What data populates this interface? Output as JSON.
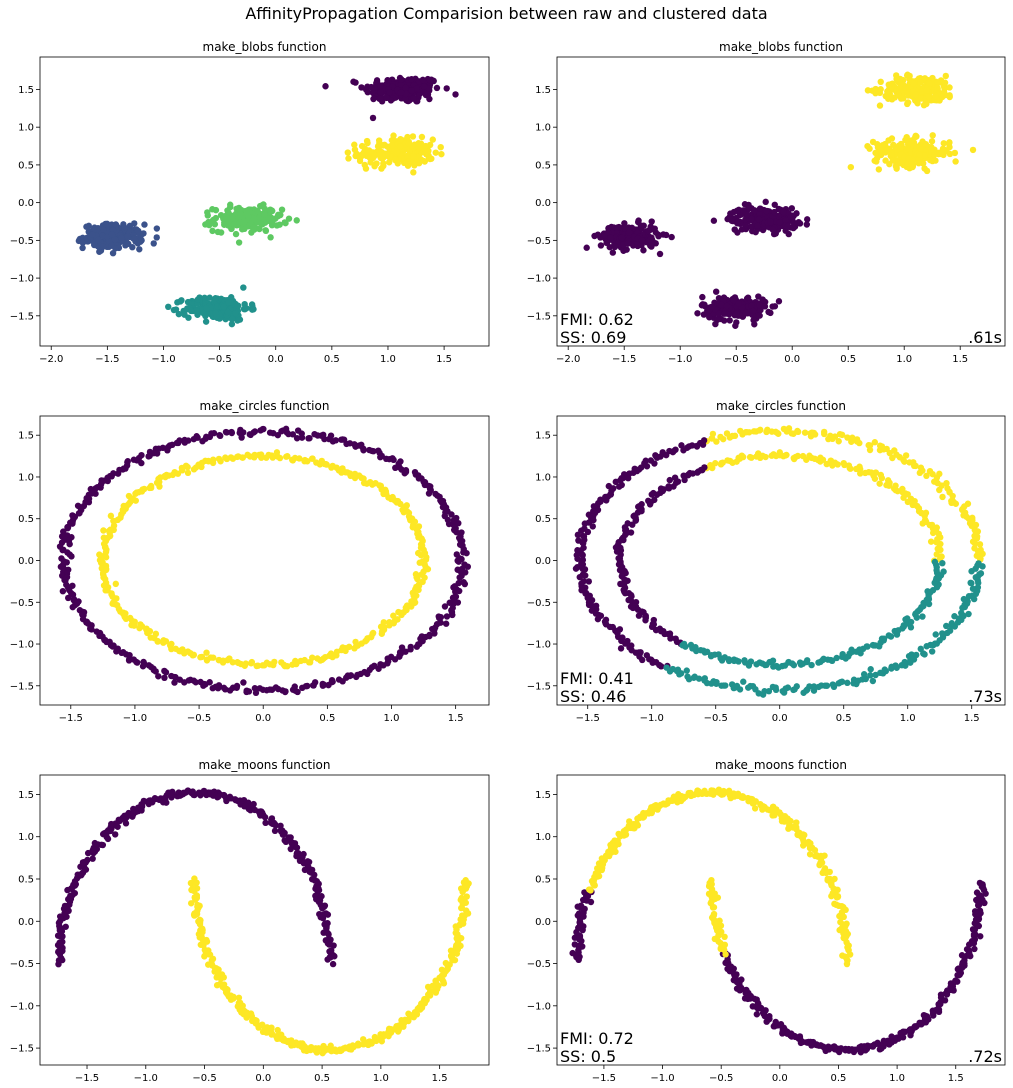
{
  "figure": {
    "suptitle": "AffinityPropagation Comparision between raw and clustered data"
  },
  "colors": {
    "purple": "#440154",
    "blue": "#3b528b",
    "teal": "#21918c",
    "green": "#5ec962",
    "yellow": "#fde725"
  },
  "chart_data": [
    {
      "type": "scatter",
      "title": "make_blobs function",
      "xlim": [
        -2.1,
        1.9
      ],
      "ylim": [
        -1.9,
        1.93
      ],
      "xticks": [
        -2.0,
        -1.5,
        -1.0,
        -0.5,
        0.0,
        0.5,
        1.0,
        1.5
      ],
      "xtick_labels": [
        "−2.0",
        "−1.5",
        "−1.0",
        "−0.5",
        "0.0",
        "0.5",
        "1.0",
        "1.5"
      ],
      "yticks": [
        -1.5,
        -1.0,
        -0.5,
        0.0,
        0.5,
        1.0,
        1.5
      ],
      "ytick_labels": [
        "−1.5",
        "−1.0",
        "−0.5",
        "0.0",
        "0.5",
        "1.0",
        "1.5"
      ],
      "series": [
        {
          "shape": "blob",
          "color": "purple",
          "cx": 1.13,
          "cy": 1.5,
          "sx": 0.17,
          "sy": 0.09,
          "n": 200
        },
        {
          "shape": "blob",
          "color": "yellow",
          "cx": 1.07,
          "cy": 0.66,
          "sx": 0.17,
          "sy": 0.09,
          "n": 200
        },
        {
          "shape": "blob",
          "color": "blue",
          "cx": -1.45,
          "cy": -0.45,
          "sx": 0.13,
          "sy": 0.08,
          "n": 200
        },
        {
          "shape": "blob",
          "color": "green",
          "cx": -0.25,
          "cy": -0.22,
          "sx": 0.15,
          "sy": 0.08,
          "n": 200
        },
        {
          "shape": "blob",
          "color": "teal",
          "cx": -0.52,
          "cy": -1.4,
          "sx": 0.14,
          "sy": 0.08,
          "n": 200
        }
      ],
      "annotation": null
    },
    {
      "type": "scatter",
      "title": "make_blobs function",
      "xlim": [
        -2.1,
        1.9
      ],
      "ylim": [
        -1.9,
        1.93
      ],
      "xticks": [
        -2.0,
        -1.5,
        -1.0,
        -0.5,
        0.0,
        0.5,
        1.0,
        1.5
      ],
      "xtick_labels": [
        "−2.0",
        "−1.5",
        "−1.0",
        "−0.5",
        "0.0",
        "0.5",
        "1.0",
        "1.5"
      ],
      "yticks": [
        -1.5,
        -1.0,
        -0.5,
        0.0,
        0.5,
        1.0,
        1.5
      ],
      "ytick_labels": [
        "−1.5",
        "−1.0",
        "−0.5",
        "0.0",
        "0.5",
        "1.0",
        "1.5"
      ],
      "series": [
        {
          "shape": "blob",
          "color": "yellow",
          "cx": 1.13,
          "cy": 1.5,
          "sx": 0.17,
          "sy": 0.09,
          "n": 200
        },
        {
          "shape": "blob",
          "color": "yellow",
          "cx": 1.07,
          "cy": 0.66,
          "sx": 0.17,
          "sy": 0.09,
          "n": 200
        },
        {
          "shape": "blob",
          "color": "purple",
          "cx": -1.45,
          "cy": -0.45,
          "sx": 0.13,
          "sy": 0.08,
          "n": 200
        },
        {
          "shape": "blob",
          "color": "purple",
          "cx": -0.25,
          "cy": -0.22,
          "sx": 0.15,
          "sy": 0.08,
          "n": 200
        },
        {
          "shape": "blob",
          "color": "purple",
          "cx": -0.52,
          "cy": -1.4,
          "sx": 0.14,
          "sy": 0.08,
          "n": 200
        }
      ],
      "annotation": {
        "fmi": "FMI: 0.62",
        "ss": "SS: 0.69",
        "time": ".61s"
      }
    },
    {
      "type": "scatter",
      "title": "make_circles function",
      "xlim": [
        -1.74,
        1.76
      ],
      "ylim": [
        -1.73,
        1.73
      ],
      "xticks": [
        -1.5,
        -1.0,
        -0.5,
        0.0,
        0.5,
        1.0,
        1.5
      ],
      "xtick_labels": [
        "−1.5",
        "−1.0",
        "−0.5",
        "0.0",
        "0.5",
        "1.0",
        "1.5"
      ],
      "yticks": [
        -1.5,
        -1.0,
        -0.5,
        0.0,
        0.5,
        1.0,
        1.5
      ],
      "ytick_labels": [
        "−1.5",
        "−1.0",
        "−0.5",
        "0.0",
        "0.5",
        "1.0",
        "1.5"
      ],
      "series": [
        {
          "shape": "ring",
          "rx": 1.56,
          "ry": 1.55,
          "n": 420,
          "segments": [
            {
              "from": 0,
              "to": 360,
              "color": "purple"
            }
          ]
        },
        {
          "shape": "ring",
          "rx": 1.25,
          "ry": 1.25,
          "n": 360,
          "segments": [
            {
              "from": 0,
              "to": 360,
              "color": "yellow"
            }
          ]
        }
      ],
      "annotation": null
    },
    {
      "type": "scatter",
      "title": "make_circles function",
      "xlim": [
        -1.74,
        1.76
      ],
      "ylim": [
        -1.73,
        1.73
      ],
      "xticks": [
        -1.5,
        -1.0,
        -0.5,
        0.0,
        0.5,
        1.0,
        1.5
      ],
      "xtick_labels": [
        "−1.5",
        "−1.0",
        "−0.5",
        "0.0",
        "0.5",
        "1.0",
        "1.5"
      ],
      "yticks": [
        -1.5,
        -1.0,
        -0.5,
        0.0,
        0.5,
        1.0,
        1.5
      ],
      "ytick_labels": [
        "−1.5",
        "−1.0",
        "−0.5",
        "0.0",
        "0.5",
        "1.0",
        "1.5"
      ],
      "series": [
        {
          "shape": "ring",
          "rx": 1.56,
          "ry": 1.55,
          "n": 420,
          "segments": [
            {
              "from": -3,
              "to": 112,
              "color": "yellow"
            },
            {
              "from": 112,
              "to": 235,
              "color": "purple"
            },
            {
              "from": 235,
              "to": 357,
              "color": "teal"
            }
          ]
        },
        {
          "shape": "ring",
          "rx": 1.25,
          "ry": 1.25,
          "n": 360,
          "segments": [
            {
              "from": -4,
              "to": 118,
              "color": "yellow"
            },
            {
              "from": 118,
              "to": 233,
              "color": "purple"
            },
            {
              "from": 233,
              "to": 356,
              "color": "teal"
            }
          ]
        }
      ],
      "annotation": {
        "fmi": "FMI: 0.41",
        "ss": "SS: 0.46",
        "time": ".73s"
      }
    },
    {
      "type": "scatter",
      "title": "make_moons function",
      "xlim": [
        -1.9,
        1.92
      ],
      "ylim": [
        -1.7,
        1.73
      ],
      "xticks": [
        -1.5,
        -1.0,
        -0.5,
        0.0,
        0.5,
        1.0,
        1.5
      ],
      "xtick_labels": [
        "−1.5",
        "−1.0",
        "−0.5",
        "0.0",
        "0.5",
        "1.0",
        "1.5"
      ],
      "yticks": [
        -1.5,
        -1.0,
        -0.5,
        0.0,
        0.5,
        1.0,
        1.5
      ],
      "ytick_labels": [
        "−1.5",
        "−1.0",
        "−0.5",
        "0.0",
        "0.5",
        "1.0",
        "1.5"
      ],
      "series": [
        {
          "shape": "moon",
          "cx": -0.58,
          "cy": -0.48,
          "rx": 1.15,
          "ry": 2.0,
          "flip": false,
          "n": 320,
          "segments": [
            {
              "from": 0,
              "to": 180,
              "color": "purple"
            }
          ]
        },
        {
          "shape": "moon",
          "cx": 0.57,
          "cy": 0.48,
          "rx": 1.15,
          "ry": 2.0,
          "flip": true,
          "n": 320,
          "segments": [
            {
              "from": 0,
              "to": 180,
              "color": "yellow"
            }
          ]
        }
      ],
      "annotation": null
    },
    {
      "type": "scatter",
      "title": "make_moons function",
      "xlim": [
        -1.9,
        1.92
      ],
      "ylim": [
        -1.7,
        1.73
      ],
      "xticks": [
        -1.5,
        -1.0,
        -0.5,
        0.0,
        0.5,
        1.0,
        1.5
      ],
      "xtick_labels": [
        "−1.5",
        "−1.0",
        "−0.5",
        "0.0",
        "0.5",
        "1.0",
        "1.5"
      ],
      "yticks": [
        -1.5,
        -1.0,
        -0.5,
        0.0,
        0.5,
        1.0,
        1.5
      ],
      "ytick_labels": [
        "−1.5",
        "−1.0",
        "−0.5",
        "0.0",
        "0.5",
        "1.0",
        "1.5"
      ],
      "series": [
        {
          "shape": "moon",
          "cx": -0.58,
          "cy": -0.48,
          "rx": 1.15,
          "ry": 2.0,
          "flip": false,
          "n": 320,
          "segments": [
            {
              "from": 0,
              "to": 25,
              "color": "purple"
            },
            {
              "from": 25,
              "to": 180,
              "color": "yellow"
            }
          ]
        },
        {
          "shape": "moon",
          "cx": 0.57,
          "cy": 0.48,
          "rx": 1.15,
          "ry": 2.0,
          "flip": true,
          "n": 320,
          "segments": [
            {
              "from": 0,
              "to": 155,
              "color": "purple"
            },
            {
              "from": 155,
              "to": 180,
              "color": "yellow"
            }
          ]
        }
      ],
      "annotation": {
        "fmi": "FMI: 0.72",
        "ss": "SS: 0.5",
        "time": ".72s"
      }
    }
  ]
}
